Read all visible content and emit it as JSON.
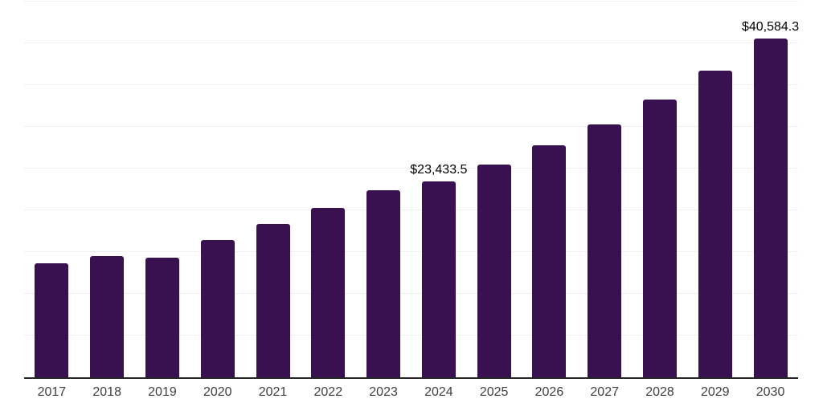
{
  "chart_data": {
    "type": "bar",
    "title": "",
    "xlabel": "",
    "ylabel": "",
    "categories": [
      "2017",
      "2018",
      "2019",
      "2020",
      "2021",
      "2022",
      "2023",
      "2024",
      "2025",
      "2026",
      "2027",
      "2028",
      "2029",
      "2030"
    ],
    "values": [
      13700,
      14500,
      14350,
      16420,
      18400,
      20270,
      22440,
      23433.5,
      25490,
      27790,
      30290,
      33240,
      36700,
      40584.3
    ],
    "data_labels": [
      {
        "category": "2024",
        "text": "$23,433.5"
      },
      {
        "category": "2030",
        "text": "$40,584.3"
      }
    ],
    "ylim": [
      0,
      45000
    ],
    "gridline_step": 5000,
    "grid": "horizontal-only",
    "legend": "none",
    "y_axis_ticks": "none",
    "colors": {
      "bar": "#3A1150",
      "axis_line": "#262626",
      "gridline": "#efefef",
      "tick_label": "#404040",
      "data_label": "#000000",
      "background": "#ffffff"
    }
  }
}
